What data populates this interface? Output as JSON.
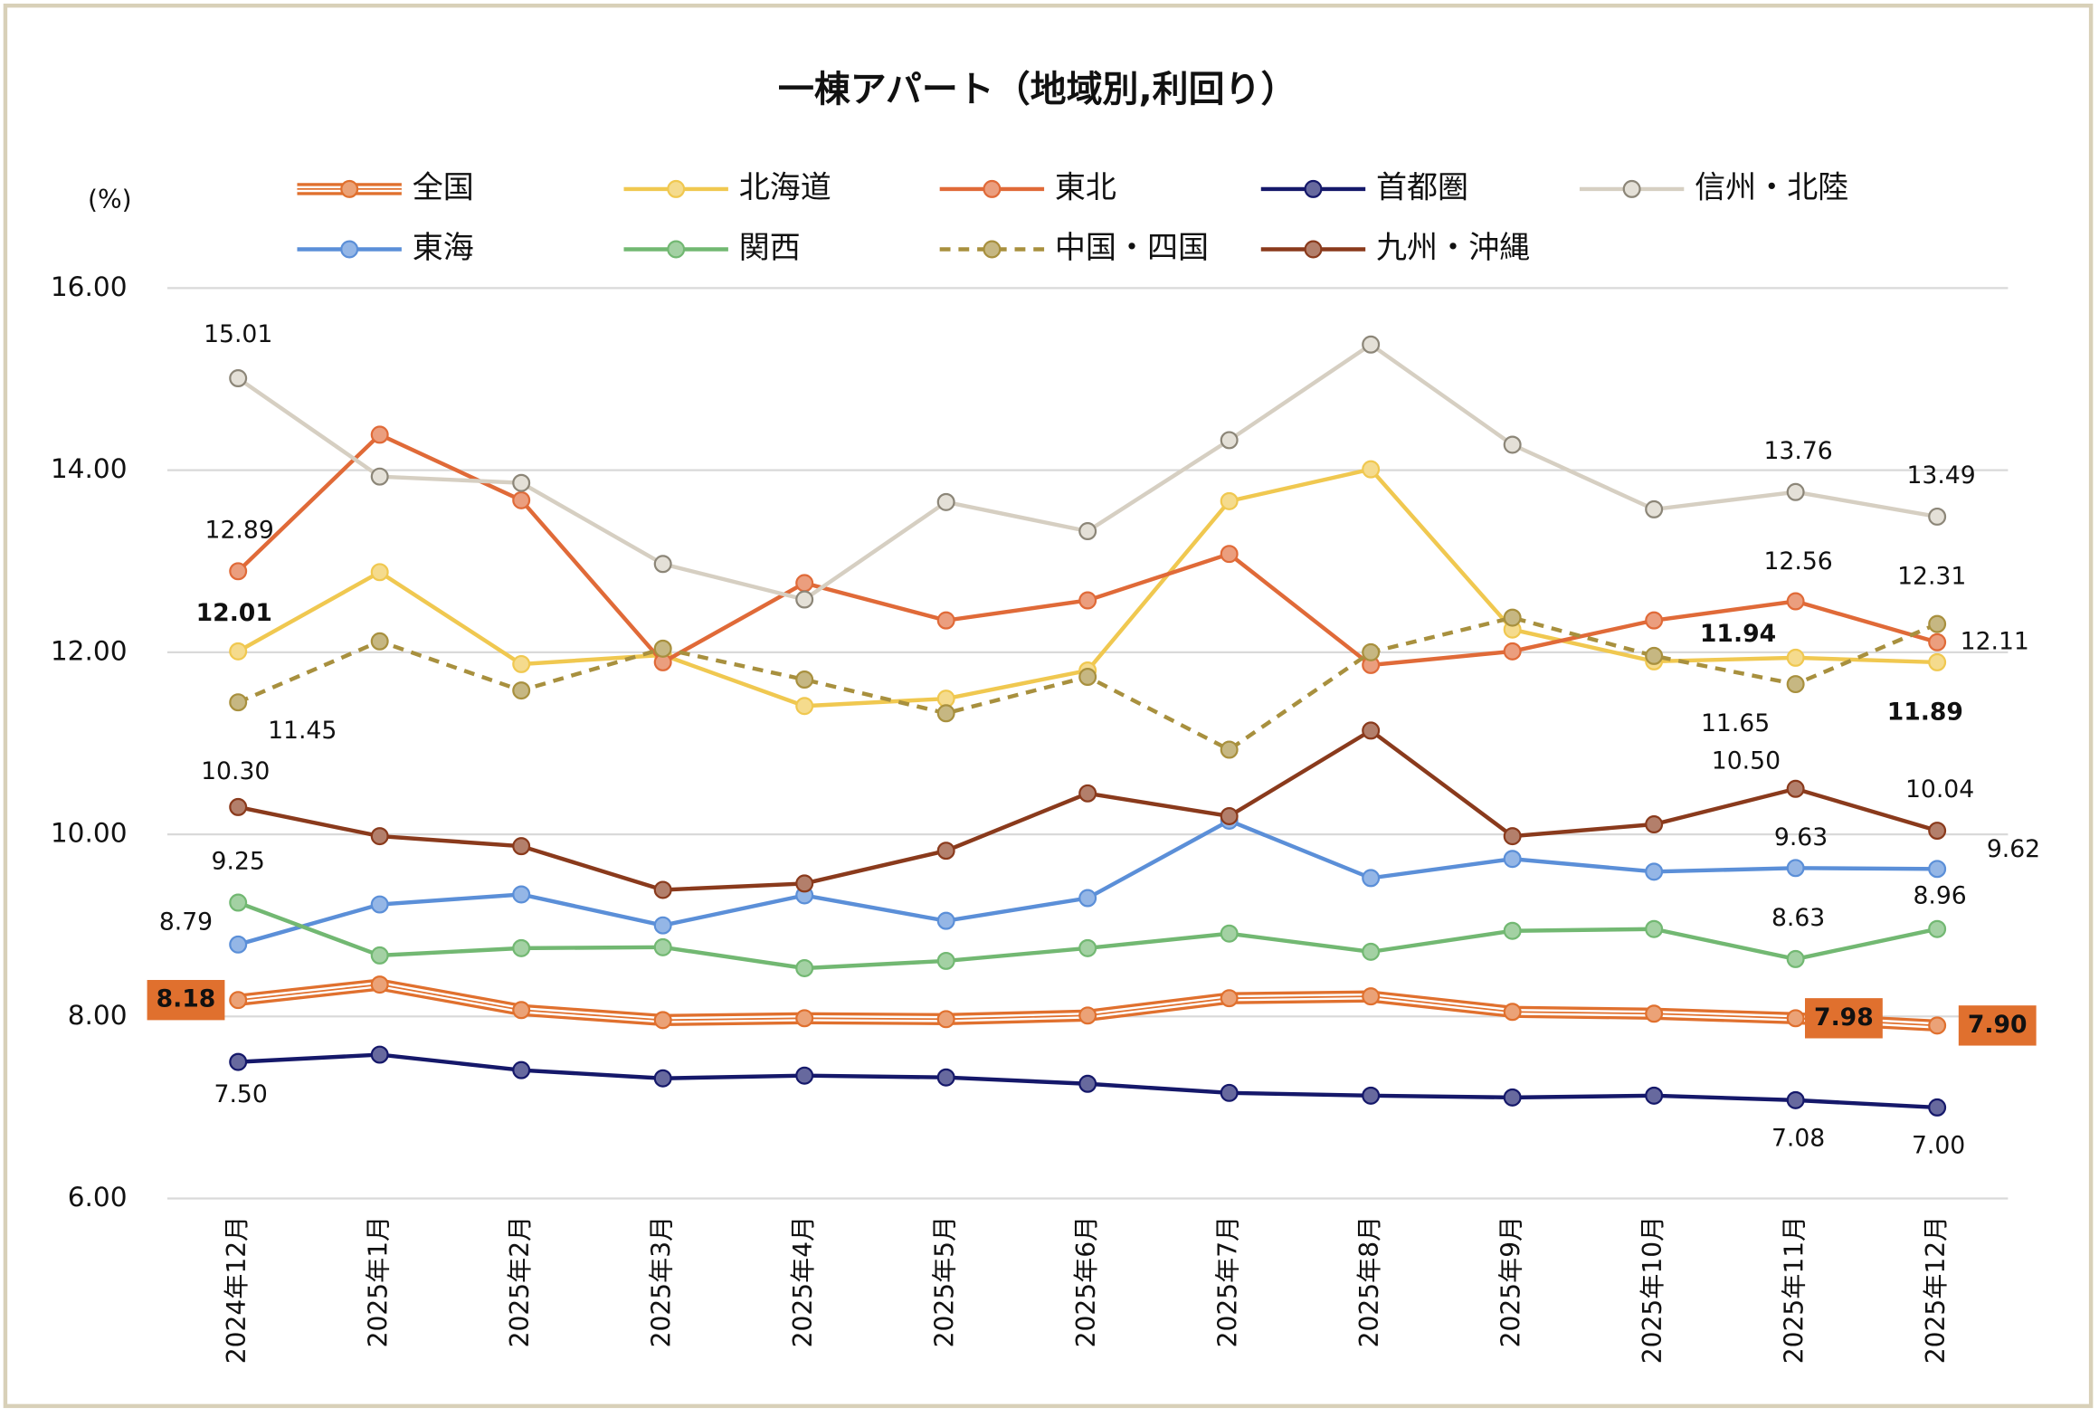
{
  "chart_data": {
    "type": "line",
    "title": "一棟アパート（地域別,利回り）",
    "y_unit": "(%)",
    "categories": [
      "2024年12月",
      "2025年1月",
      "2025年2月",
      "2025年3月",
      "2025年4月",
      "2025年5月",
      "2025年6月",
      "2025年7月",
      "2025年8月",
      "2025年9月",
      "2025年10月",
      "2025年11月",
      "2025年12月"
    ],
    "ylim": [
      6,
      16
    ],
    "yticks": [
      {
        "value": 6,
        "label": "6.00"
      },
      {
        "value": 8,
        "label": "8.00"
      },
      {
        "value": 10,
        "label": "10.00"
      },
      {
        "value": 12,
        "label": "12.00"
      },
      {
        "value": 14,
        "label": "14.00"
      },
      {
        "value": 16,
        "label": "16.00"
      }
    ],
    "grid": true,
    "legend": "top",
    "series": [
      {
        "name": "全国",
        "color": "#e0702e",
        "style": "double",
        "values": [
          8.18,
          8.35,
          8.07,
          7.96,
          7.98,
          7.97,
          8.01,
          8.2,
          8.22,
          8.05,
          8.03,
          7.98,
          7.9
        ],
        "value_labels": [
          "8.18",
          null,
          null,
          null,
          null,
          null,
          null,
          null,
          null,
          null,
          null,
          "7.98",
          "7.90"
        ]
      },
      {
        "name": "北海道",
        "color": "#f0c850",
        "values": [
          12.01,
          12.88,
          11.87,
          11.97,
          11.41,
          11.49,
          11.8,
          13.66,
          14.01,
          12.25,
          11.9,
          11.94,
          11.89
        ],
        "value_labels": [
          "12.01",
          null,
          null,
          null,
          null,
          null,
          null,
          null,
          null,
          null,
          null,
          "11.94",
          "11.89"
        ]
      },
      {
        "name": "東北",
        "color": "#e06a38",
        "values": [
          12.89,
          14.39,
          13.67,
          11.89,
          12.76,
          12.35,
          12.57,
          13.08,
          11.86,
          12.01,
          12.35,
          12.56,
          12.11
        ],
        "value_labels": [
          "12.89",
          null,
          null,
          null,
          null,
          null,
          null,
          null,
          null,
          null,
          null,
          "12.56",
          "12.11"
        ]
      },
      {
        "name": "首都圏",
        "color": "#15186a",
        "values": [
          7.5,
          7.58,
          7.41,
          7.32,
          7.35,
          7.33,
          7.26,
          7.16,
          7.13,
          7.11,
          7.13,
          7.08,
          7.0
        ],
        "value_labels": [
          "7.50",
          null,
          null,
          null,
          null,
          null,
          null,
          null,
          null,
          null,
          null,
          "7.08",
          "7.00"
        ]
      },
      {
        "name": "信州・北陸",
        "color": "#d6cfc2",
        "values": [
          15.01,
          13.93,
          13.86,
          12.97,
          12.58,
          13.65,
          13.33,
          14.33,
          15.38,
          14.28,
          13.57,
          13.76,
          13.49
        ],
        "value_labels": [
          "15.01",
          null,
          null,
          null,
          null,
          null,
          null,
          null,
          null,
          null,
          null,
          "13.76",
          "13.49"
        ]
      },
      {
        "name": "東海",
        "color": "#5b8fd8",
        "values": [
          8.79,
          9.23,
          9.34,
          9.0,
          9.33,
          9.05,
          9.3,
          10.15,
          9.52,
          9.73,
          9.59,
          9.63,
          9.62
        ],
        "value_labels": [
          "8.79",
          null,
          null,
          null,
          null,
          null,
          null,
          null,
          null,
          null,
          null,
          "9.63",
          "9.62"
        ]
      },
      {
        "name": "関西",
        "color": "#72b872",
        "values": [
          9.25,
          8.67,
          8.75,
          8.76,
          8.53,
          8.61,
          8.75,
          8.91,
          8.71,
          8.94,
          8.96,
          8.63,
          8.96
        ],
        "value_labels": [
          "9.25",
          null,
          null,
          null,
          null,
          null,
          null,
          null,
          null,
          null,
          null,
          "8.63",
          "8.96"
        ]
      },
      {
        "name": "中国・四国",
        "color": "#a8903e",
        "style": "dashed",
        "values": [
          11.45,
          12.12,
          11.58,
          12.04,
          11.7,
          11.33,
          11.73,
          10.93,
          12.0,
          12.38,
          11.96,
          11.65,
          12.31
        ],
        "value_labels": [
          "11.45",
          null,
          null,
          null,
          null,
          null,
          null,
          null,
          null,
          null,
          null,
          "11.65",
          "12.31"
        ]
      },
      {
        "name": "九州・沖縄",
        "color": "#8a3a1c",
        "values": [
          10.3,
          9.98,
          9.87,
          9.39,
          9.46,
          9.82,
          10.45,
          10.2,
          11.14,
          9.98,
          10.11,
          10.5,
          10.04
        ],
        "value_labels": [
          "10.30",
          null,
          null,
          null,
          null,
          null,
          null,
          null,
          null,
          null,
          null,
          "10.50",
          "10.04"
        ]
      }
    ]
  }
}
